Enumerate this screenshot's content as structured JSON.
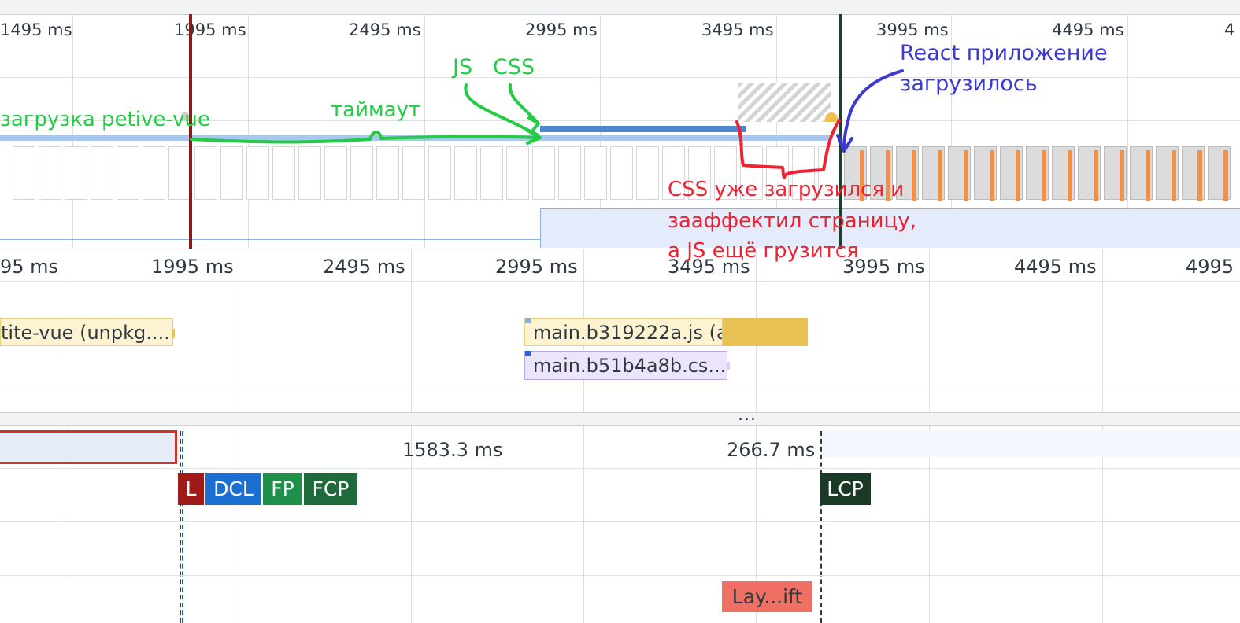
{
  "overview_ticks": [
    "1495 ms",
    "1995 ms",
    "2495 ms",
    "2995 ms",
    "3495 ms",
    "3995 ms",
    "4495 ms",
    "4"
  ],
  "main_ticks": [
    "95 ms",
    "1995 ms",
    "2495 ms",
    "2995 ms",
    "3495 ms",
    "3995 ms",
    "4495 ms",
    "4995"
  ],
  "network": {
    "bar1": "tite-vue (unpkg....",
    "bar2": "main.b319222a.js (ahfarm...",
    "bar3": "main.b51b4a8b.cs..."
  },
  "collapse_dots": "...",
  "timings": {
    "interval1": "1583.3 ms",
    "interval2": "266.7 ms"
  },
  "markers": {
    "l": "L",
    "dcl": "DCL",
    "fp": "FP",
    "fcp": "FCP",
    "lcp": "LCP"
  },
  "layout_shift": "Lay...ift",
  "annotations": {
    "petite_load": "загрузка petive-vue",
    "timeout": "таймаут",
    "js": "JS",
    "css": "CSS",
    "react": "React приложение",
    "react2": "загрузилось",
    "css_note1": "CSS уже загрузился и",
    "css_note2": "зааффектил страницу,",
    "css_note3": "а JS ещё грузится"
  },
  "colors": {
    "annotation_green": "#22cc44",
    "annotation_red": "#ee2233",
    "annotation_blue": "#3a3ad0",
    "l_marker": "#a11a1a",
    "dcl_marker": "#1a6fd0",
    "fp_marker": "#1f8f4a",
    "fcp_marker": "#1e6a3a",
    "lcp_marker": "#1b3a26",
    "layout_shift": "#f07063"
  }
}
